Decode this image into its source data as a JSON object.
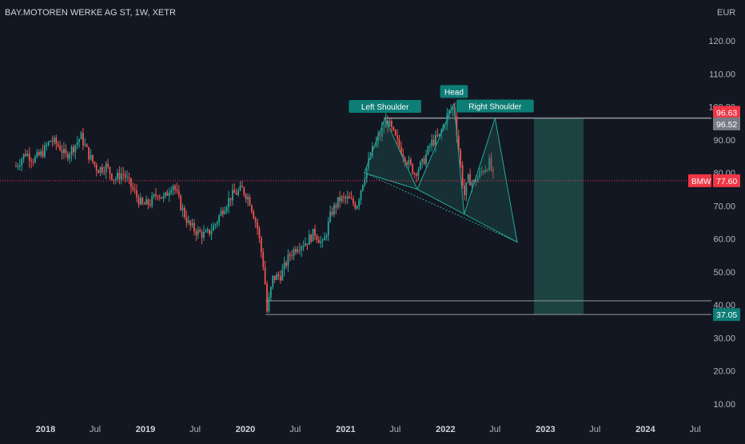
{
  "header": {
    "title": "BAY.MOTOREN WERKE AG ST, 1W, XETR"
  },
  "colors": {
    "background": "#131722",
    "up": "#26a69a",
    "down": "#ef5350",
    "text": "#b2b5be",
    "pattern_fill": "#1d5e5a",
    "pattern_stroke": "#26a69a",
    "target_zone": "#1e4a48",
    "red_badge": "#f23645",
    "gray_badge": "#787b86",
    "teal_badge": "#0d7e76"
  },
  "chart_data": {
    "type": "candlestick",
    "title": "BAY.MOTOREN WERKE AG ST, 1W, XETR",
    "currency": "EUR",
    "interval": "1W",
    "y_ticks": [
      "120.00",
      "110.00",
      "100.00",
      "90.00",
      "80.00",
      "70.00",
      "60.00",
      "50.00",
      "40.00",
      "30.00",
      "20.00",
      "10.00"
    ],
    "ylim": [
      5,
      130
    ],
    "x_ticks": [
      "2018",
      "Jul",
      "2019",
      "Jul",
      "2020",
      "Jul",
      "2021",
      "Jul",
      "2022",
      "Jul",
      "2023",
      "Jul",
      "2024",
      "Jul"
    ],
    "x_tick_dates": [
      "2018-01-01",
      "2018-07-01",
      "2019-01-01",
      "2019-07-01",
      "2020-01-01",
      "2020-07-01",
      "2021-01-01",
      "2021-07-01",
      "2022-01-01",
      "2022-07-01",
      "2023-01-01",
      "2023-07-01",
      "2024-01-01",
      "2024-07-01"
    ],
    "price_path": [
      [
        "2017-09-15",
        82
      ],
      [
        "2017-10-20",
        86
      ],
      [
        "2017-11-20",
        84
      ],
      [
        "2017-12-20",
        86
      ],
      [
        "2018-01-20",
        90
      ],
      [
        "2018-02-20",
        88
      ],
      [
        "2018-03-15",
        85
      ],
      [
        "2018-04-15",
        88
      ],
      [
        "2018-05-10",
        91
      ],
      [
        "2018-06-10",
        85
      ],
      [
        "2018-07-10",
        81
      ],
      [
        "2018-08-10",
        82
      ],
      [
        "2018-09-10",
        78
      ],
      [
        "2018-10-10",
        80
      ],
      [
        "2018-11-15",
        75
      ],
      [
        "2018-12-20",
        70
      ],
      [
        "2019-01-20",
        71
      ],
      [
        "2019-02-15",
        74
      ],
      [
        "2019-03-10",
        72
      ],
      [
        "2019-04-10",
        77
      ],
      [
        "2019-05-10",
        70
      ],
      [
        "2019-06-10",
        64
      ],
      [
        "2019-07-10",
        62
      ],
      [
        "2019-08-10",
        61
      ],
      [
        "2019-09-10",
        64
      ],
      [
        "2019-10-10",
        69
      ],
      [
        "2019-11-10",
        73
      ],
      [
        "2019-12-20",
        75
      ],
      [
        "2020-01-15",
        72
      ],
      [
        "2020-02-15",
        63
      ],
      [
        "2020-03-10",
        50
      ],
      [
        "2020-03-20",
        38
      ],
      [
        "2020-04-10",
        48
      ],
      [
        "2020-05-10",
        49
      ],
      [
        "2020-06-10",
        55
      ],
      [
        "2020-07-10",
        58
      ],
      [
        "2020-08-10",
        59
      ],
      [
        "2020-09-10",
        62
      ],
      [
        "2020-10-10",
        58
      ],
      [
        "2020-11-10",
        68
      ],
      [
        "2020-12-10",
        72
      ],
      [
        "2021-01-10",
        72
      ],
      [
        "2021-02-10",
        70
      ],
      [
        "2021-03-10",
        79
      ],
      [
        "2021-04-10",
        87
      ],
      [
        "2021-05-10",
        92
      ],
      [
        "2021-06-01",
        96
      ],
      [
        "2021-07-10",
        89
      ],
      [
        "2021-08-10",
        84
      ],
      [
        "2021-09-10",
        80
      ],
      [
        "2021-10-10",
        83
      ],
      [
        "2021-11-10",
        89
      ],
      [
        "2021-12-10",
        91
      ],
      [
        "2022-01-10",
        98
      ],
      [
        "2022-02-01",
        100
      ],
      [
        "2022-02-25",
        82
      ],
      [
        "2022-03-10",
        73
      ],
      [
        "2022-03-25",
        78
      ],
      [
        "2022-04-15",
        77
      ],
      [
        "2022-05-10",
        80
      ],
      [
        "2022-06-10",
        83
      ],
      [
        "2022-06-28",
        77.6
      ]
    ],
    "last_price": 77.6,
    "last_price_label": "77.60",
    "symbol_badge": "BMW",
    "levels": [
      {
        "name": "resistance-upper",
        "value": 96.63,
        "label": "96.63",
        "from": "2021-05-20",
        "to": "2024-08-01",
        "color": "#9598a1"
      },
      {
        "name": "resistance-lower",
        "value": 96.52,
        "label": "96.52",
        "from": "2021-05-20",
        "to": "2024-08-01",
        "color": "#9598a1"
      },
      {
        "name": "support-upper",
        "value": 41.2,
        "label": "",
        "from": "2020-03-15",
        "to": "2024-08-01",
        "color": "#9598a1"
      },
      {
        "name": "support-lower",
        "value": 37.05,
        "label": "37.05",
        "from": "2020-03-15",
        "to": "2024-08-01",
        "color": "#9598a1"
      }
    ],
    "pattern": {
      "name": "Head and Shoulders",
      "points": [
        [
          "2021-03-10",
          80
        ],
        [
          "2021-05-25",
          96.5
        ],
        [
          "2021-09-20",
          75
        ],
        [
          "2022-02-01",
          101
        ],
        [
          "2022-03-10",
          67.5
        ],
        [
          "2022-07-01",
          96.6
        ],
        [
          "2022-09-20",
          59
        ]
      ],
      "labels": [
        {
          "text": "Left Shoulder",
          "anchor": [
            "2021-05-25",
            96.5
          ]
        },
        {
          "text": "Head",
          "anchor": [
            "2022-02-01",
            101
          ]
        },
        {
          "text": "Right Shoulder",
          "anchor": [
            "2022-07-01",
            96.6
          ]
        }
      ]
    },
    "target_zone": {
      "from": "2022-11-20",
      "to": "2023-05-20",
      "top": 96.7,
      "bottom": 37.05
    },
    "legend": "none",
    "grid": false
  }
}
